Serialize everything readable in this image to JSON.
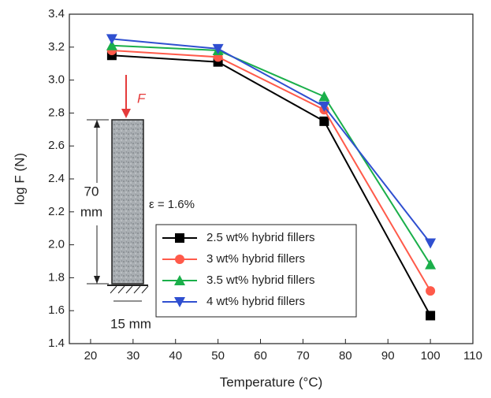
{
  "chart_data": {
    "type": "line",
    "x_label": "Temperature (°C)",
    "y_label": "log F (N)",
    "xlim": [
      15,
      110
    ],
    "xticks": [
      20,
      30,
      40,
      50,
      60,
      70,
      80,
      90,
      100,
      110
    ],
    "ylim": [
      1.4,
      3.4
    ],
    "yticks": [
      1.4,
      1.6,
      1.8,
      {
        "value": 2,
        "label": "2.0"
      },
      2.2,
      2.4,
      2.6,
      2.8,
      {
        "value": 3,
        "label": "3.0"
      },
      3.2,
      3.4
    ],
    "x": [
      25,
      50,
      75,
      100
    ],
    "series": [
      {
        "name": "2.5 wt% hybrid fillers",
        "color": "#000000",
        "marker": "square",
        "values": [
          3.15,
          3.11,
          2.75,
          1.57
        ]
      },
      {
        "name": "3 wt% hybrid fillers",
        "color": "#ff5a4a",
        "marker": "circle",
        "values": [
          3.18,
          3.14,
          2.82,
          1.72
        ]
      },
      {
        "name": "3.5 wt% hybrid fillers",
        "color": "#1aaf4a",
        "marker": "triangle",
        "values": [
          3.21,
          3.18,
          2.9,
          1.88
        ]
      },
      {
        "name": "4 wt% hybrid fillers",
        "color": "#2f4fd0",
        "marker": "triangle-down",
        "values": [
          3.25,
          3.19,
          2.84,
          2.01
        ]
      }
    ],
    "annotations": {
      "force": "F",
      "height_value": "70",
      "height_unit": "mm",
      "strain": "ε = 1.6%",
      "width": "15 mm"
    }
  }
}
